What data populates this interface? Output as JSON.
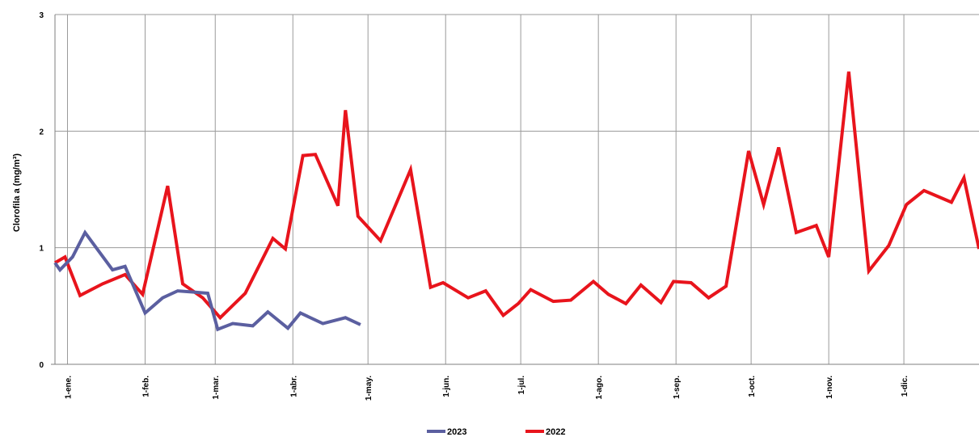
{
  "chart_data": {
    "type": "line",
    "title": "",
    "xlabel": "",
    "ylabel": "Clorofila a (mg/m³)",
    "ylim": [
      0,
      3
    ],
    "yticks": [
      "0",
      "1",
      "2",
      "3"
    ],
    "xlim": [
      "2022-12-27",
      "2023-12-31"
    ],
    "x_ticks": [
      {
        "label": "1-ene.",
        "date": "2023-01-01"
      },
      {
        "label": "1-feb.",
        "date": "2023-02-01"
      },
      {
        "label": "1-mar.",
        "date": "2023-03-01"
      },
      {
        "label": "1-abr.",
        "date": "2023-04-01"
      },
      {
        "label": "1-may.",
        "date": "2023-05-01"
      },
      {
        "label": "1-jun.",
        "date": "2023-06-01"
      },
      {
        "label": "1-jul.",
        "date": "2023-07-01"
      },
      {
        "label": "1-ago.",
        "date": "2023-08-01"
      },
      {
        "label": "1-sep.",
        "date": "2023-09-01"
      },
      {
        "label": "1-oct.",
        "date": "2023-10-01"
      },
      {
        "label": "1-nov.",
        "date": "2023-11-01"
      },
      {
        "label": "1-dic.",
        "date": "2023-12-01"
      }
    ],
    "grid": true,
    "legend": "bottom",
    "series": [
      {
        "name": "2023",
        "color": "#5B5FA0",
        "points": [
          [
            "2022-12-27",
            0.87
          ],
          [
            "2022-12-29",
            0.81
          ],
          [
            "2023-01-03",
            0.92
          ],
          [
            "2023-01-08",
            1.13
          ],
          [
            "2023-01-19",
            0.81
          ],
          [
            "2023-01-24",
            0.84
          ],
          [
            "2023-02-01",
            0.44
          ],
          [
            "2023-02-08",
            0.57
          ],
          [
            "2023-02-14",
            0.63
          ],
          [
            "2023-02-20",
            0.62
          ],
          [
            "2023-02-26",
            0.61
          ],
          [
            "2023-03-02",
            0.3
          ],
          [
            "2023-03-08",
            0.35
          ],
          [
            "2023-03-16",
            0.33
          ],
          [
            "2023-03-22",
            0.45
          ],
          [
            "2023-03-30",
            0.31
          ],
          [
            "2023-04-04",
            0.44
          ],
          [
            "2023-04-13",
            0.35
          ],
          [
            "2023-04-22",
            0.4
          ],
          [
            "2023-04-28",
            0.34
          ]
        ]
      },
      {
        "name": "2022",
        "color": "#E8141C",
        "points": [
          [
            "2022-12-27",
            0.87
          ],
          [
            "2022-12-31",
            0.92
          ],
          [
            "2023-01-06",
            0.59
          ],
          [
            "2023-01-15",
            0.69
          ],
          [
            "2023-01-24",
            0.77
          ],
          [
            "2023-01-31",
            0.6
          ],
          [
            "2023-02-10",
            1.53
          ],
          [
            "2023-02-16",
            0.69
          ],
          [
            "2023-02-24",
            0.57
          ],
          [
            "2023-03-03",
            0.4
          ],
          [
            "2023-03-13",
            0.61
          ],
          [
            "2023-03-24",
            1.08
          ],
          [
            "2023-03-29",
            0.99
          ],
          [
            "2023-04-05",
            1.79
          ],
          [
            "2023-04-10",
            1.8
          ],
          [
            "2023-04-19",
            1.36
          ],
          [
            "2023-04-22",
            2.18
          ],
          [
            "2023-04-27",
            1.27
          ],
          [
            "2023-05-06",
            1.06
          ],
          [
            "2023-05-18",
            1.67
          ],
          [
            "2023-05-26",
            0.66
          ],
          [
            "2023-05-31",
            0.7
          ],
          [
            "2023-06-10",
            0.57
          ],
          [
            "2023-06-17",
            0.63
          ],
          [
            "2023-06-24",
            0.42
          ],
          [
            "2023-06-30",
            0.52
          ],
          [
            "2023-07-05",
            0.64
          ],
          [
            "2023-07-14",
            0.54
          ],
          [
            "2023-07-21",
            0.55
          ],
          [
            "2023-07-30",
            0.71
          ],
          [
            "2023-08-05",
            0.6
          ],
          [
            "2023-08-12",
            0.52
          ],
          [
            "2023-08-18",
            0.68
          ],
          [
            "2023-08-26",
            0.53
          ],
          [
            "2023-08-31",
            0.71
          ],
          [
            "2023-09-07",
            0.7
          ],
          [
            "2023-09-14",
            0.57
          ],
          [
            "2023-09-21",
            0.67
          ],
          [
            "2023-09-30",
            1.83
          ],
          [
            "2023-10-06",
            1.37
          ],
          [
            "2023-10-12",
            1.86
          ],
          [
            "2023-10-19",
            1.13
          ],
          [
            "2023-10-27",
            1.19
          ],
          [
            "2023-11-01",
            0.92
          ],
          [
            "2023-11-09",
            2.51
          ],
          [
            "2023-11-17",
            0.8
          ],
          [
            "2023-11-25",
            1.02
          ],
          [
            "2023-12-02",
            1.37
          ],
          [
            "2023-12-09",
            1.49
          ],
          [
            "2023-12-20",
            1.39
          ],
          [
            "2023-12-25",
            1.6
          ],
          [
            "2023-12-31",
            0.99
          ]
        ]
      }
    ]
  }
}
